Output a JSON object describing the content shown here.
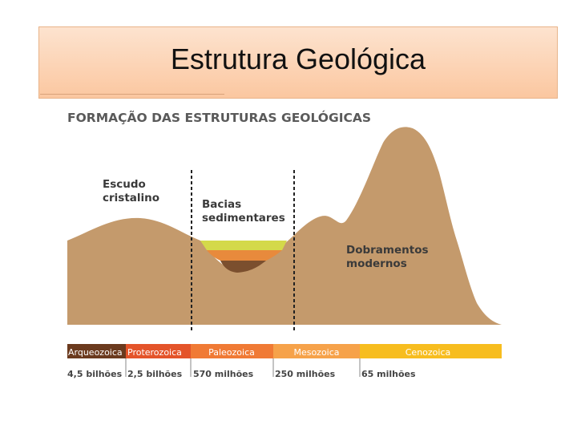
{
  "slide": {
    "title": "Estrutura Geológica"
  },
  "diagram": {
    "heading": "FORMAÇÃO DAS ESTRUTURAS GEOLÓGICAS",
    "labels": {
      "escudo_line1": "Escudo",
      "escudo_line2": "cristalino",
      "bacias_line1": "Bacias",
      "bacias_line2": "sedimentares",
      "dobramentos_line1": "Dobramentos",
      "dobramentos_line2": "modernos"
    },
    "eras": [
      {
        "name": "Arqueozoica",
        "color": "#6b3a1e"
      },
      {
        "name": "Proterozoica",
        "color": "#e4542a"
      },
      {
        "name": "Paleozoica",
        "color": "#f07a35"
      },
      {
        "name": "Mesozoica",
        "color": "#f6a24a"
      },
      {
        "name": "Cenozoica",
        "color": "#f7bd1f"
      }
    ],
    "ages": [
      "4,5 bilhões",
      "2,5 bilhões",
      "570 milhões",
      "250 milhões",
      "65 milhões"
    ],
    "colors": {
      "terrain": "#c49a6c",
      "layer_top": "#d4d94a",
      "layer_mid": "#e88a3c",
      "layer_bottom": "#7b4f2e"
    }
  }
}
